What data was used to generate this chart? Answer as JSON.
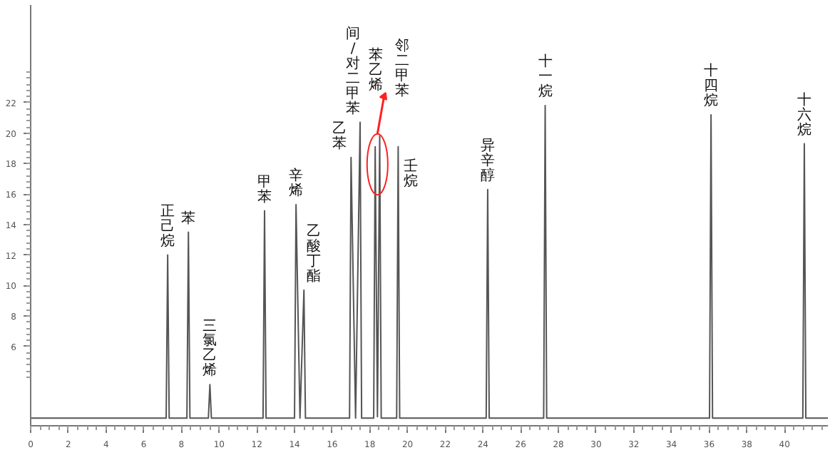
{
  "chart_data": {
    "type": "line",
    "x": [
      0,
      7.19,
      7.27,
      7.35,
      8.29,
      8.37,
      8.45,
      9.43,
      9.51,
      9.59,
      12.33,
      12.41,
      12.49,
      14.0,
      14.08,
      14.29,
      14.5,
      14.58,
      16.92,
      17.0,
      17.24,
      17.48,
      17.56,
      18.2,
      18.28,
      18.4,
      18.52,
      18.6,
      19.42,
      19.5,
      19.58,
      24.17,
      24.25,
      24.33,
      27.22,
      27.3,
      27.38,
      36.02,
      36.1,
      36.18,
      40.97,
      41.05,
      41.13,
      42.3
    ],
    "series": [
      {
        "color": "#555555",
        "values": [
          1.3,
          1.3,
          12.0,
          1.3,
          1.3,
          13.5,
          1.3,
          1.3,
          3.5,
          1.3,
          1.3,
          14.9,
          1.3,
          1.3,
          15.3,
          1.3,
          9.7,
          1.3,
          1.3,
          18.4,
          1.3,
          20.7,
          1.3,
          1.3,
          19.1,
          1.4,
          19.8,
          1.3,
          1.3,
          19.1,
          1.3,
          1.3,
          16.3,
          1.3,
          1.3,
          21.8,
          1.3,
          1.3,
          21.2,
          1.3,
          1.3,
          19.3,
          1.3,
          1.3
        ]
      }
    ],
    "xlim": [
      0,
      42.3
    ],
    "xticks": [
      0,
      2,
      4,
      6,
      8,
      10,
      12,
      14,
      16,
      18,
      20,
      22,
      24,
      26,
      28,
      30,
      32,
      34,
      36,
      38,
      40
    ],
    "ylim": [
      0.8,
      28.4
    ],
    "yticks": [
      6,
      8,
      10,
      12,
      14,
      16,
      18,
      20,
      22
    ],
    "grid": false,
    "marker": "none",
    "line_style": "solid",
    "annotations": [
      {
        "text": "正己烷",
        "x": 7.27,
        "y": 12.0
      },
      {
        "text": "苯",
        "x": 8.37,
        "y": 13.5
      },
      {
        "text": "三氯乙烯",
        "x": 9.51,
        "y": 3.5
      },
      {
        "text": "甲苯",
        "x": 12.41,
        "y": 14.9
      },
      {
        "text": "辛烯",
        "x": 14.08,
        "y": 15.3
      },
      {
        "text": "乙酸丁酯",
        "x": 14.5,
        "y": 9.7
      },
      {
        "text": "乙苯",
        "x": 17.0,
        "y": 18.4
      },
      {
        "text": "间/对二甲苯",
        "x": 17.48,
        "y": 20.7
      },
      "苯乙烯",
      {
        "text": "邻二甲苯",
        "x": 18.52,
        "y": 19.8
      },
      {
        "text": "壬烷",
        "x": 19.5,
        "y": 19.1
      },
      {
        "text": "异辛醇",
        "x": 24.25,
        "y": 16.3
      },
      {
        "text": "十一烷",
        "x": 27.3,
        "y": 21.8
      },
      {
        "text": "十四烷",
        "x": 36.1,
        "y": 21.2
      },
      {
        "text": "十六烷",
        "x": 41.05,
        "y": 19.3
      }
    ]
  }
}
